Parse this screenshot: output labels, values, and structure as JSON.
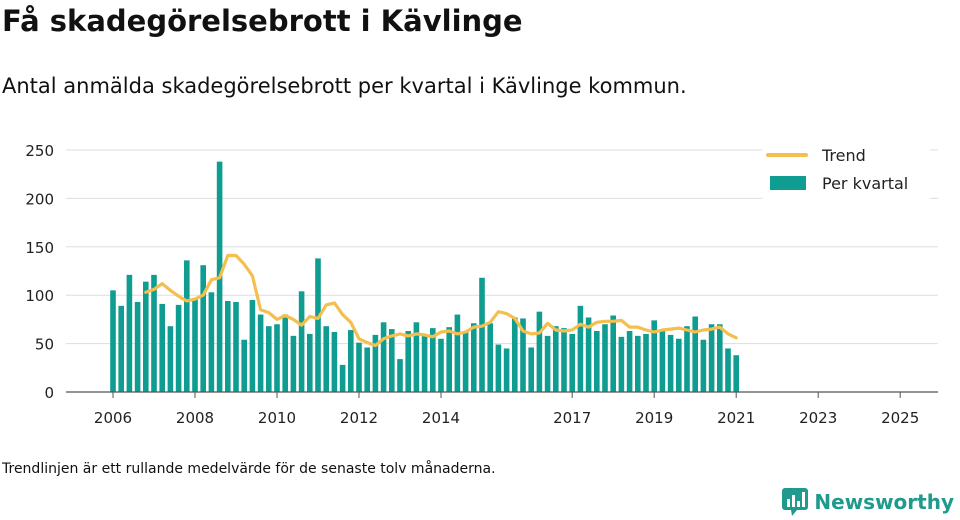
{
  "header": {
    "title": "Få skadegörelsebrott i Kävlinge",
    "subtitle": "Antal anmälda skadegörelsebrott per kvartal i Kävlinge kommun."
  },
  "footer": {
    "note": "Trendlinjen är ett rullande medelvärde för de senaste tolv månaderna.",
    "brand": "Newsworthy"
  },
  "colors": {
    "bar": "#0f9d92",
    "trend": "#f4bf4f",
    "grid": "#dddddd",
    "brand": "#1f9a8c"
  },
  "chart_data": {
    "type": "bar",
    "title": "Få skadegörelsebrott i Kävlinge",
    "subtitle": "Antal anmälda skadegörelsebrott per kvartal i Kävlinge kommun.",
    "xlabel": "",
    "ylabel": "",
    "ylim": [
      0,
      250
    ],
    "yticks": [
      0,
      50,
      100,
      150,
      200,
      250
    ],
    "grid": true,
    "legend_position": "top-right",
    "x_tick_labels": [
      {
        "label": "2006",
        "quarter_index": 0
      },
      {
        "label": "2008",
        "quarter_index": 10
      },
      {
        "label": "2010",
        "quarter_index": 20
      },
      {
        "label": "2012",
        "quarter_index": 30
      },
      {
        "label": "2014",
        "quarter_index": 40
      },
      {
        "label": "2017",
        "quarter_index": 56
      },
      {
        "label": "2019",
        "quarter_index": 66
      },
      {
        "label": "2021",
        "quarter_index": 76
      },
      {
        "label": "2023",
        "quarter_index": 86
      },
      {
        "label": "2025",
        "quarter_index": 96
      }
    ],
    "series": [
      {
        "name": "Per kvartal",
        "type": "bar",
        "values": [
          105,
          89,
          121,
          93,
          114,
          121,
          91,
          68,
          90,
          136,
          97,
          131,
          103,
          238,
          94,
          93,
          54,
          95,
          80,
          68,
          70,
          80,
          58,
          104,
          60,
          138,
          68,
          62,
          28,
          64,
          51,
          46,
          59,
          72,
          65,
          34,
          63,
          72,
          58,
          66,
          55,
          67,
          80,
          62,
          71,
          118,
          71,
          49,
          45,
          77,
          76,
          46,
          83,
          58,
          68,
          66,
          60,
          89,
          77,
          63,
          70,
          79,
          57,
          63,
          58,
          60,
          74,
          65,
          59,
          55,
          68,
          78,
          54,
          70,
          70,
          45,
          38
        ]
      },
      {
        "name": "Trend",
        "type": "line",
        "start_index": 4,
        "values": [
          103,
          106,
          112,
          105,
          99,
          94,
          96,
          100,
          116,
          118,
          141,
          141,
          132,
          120,
          85,
          82,
          75,
          79,
          75,
          69,
          78,
          76,
          90,
          92,
          80,
          72,
          55,
          51,
          48,
          55,
          58,
          60,
          58,
          60,
          59,
          57,
          62,
          63,
          60,
          62,
          67,
          68,
          72,
          83,
          81,
          76,
          63,
          60,
          61,
          71,
          64,
          63,
          64,
          70,
          67,
          72,
          73,
          73,
          74,
          67,
          67,
          64,
          62,
          64,
          65,
          66,
          64,
          62,
          64,
          65,
          67,
          60,
          56
        ]
      }
    ]
  }
}
